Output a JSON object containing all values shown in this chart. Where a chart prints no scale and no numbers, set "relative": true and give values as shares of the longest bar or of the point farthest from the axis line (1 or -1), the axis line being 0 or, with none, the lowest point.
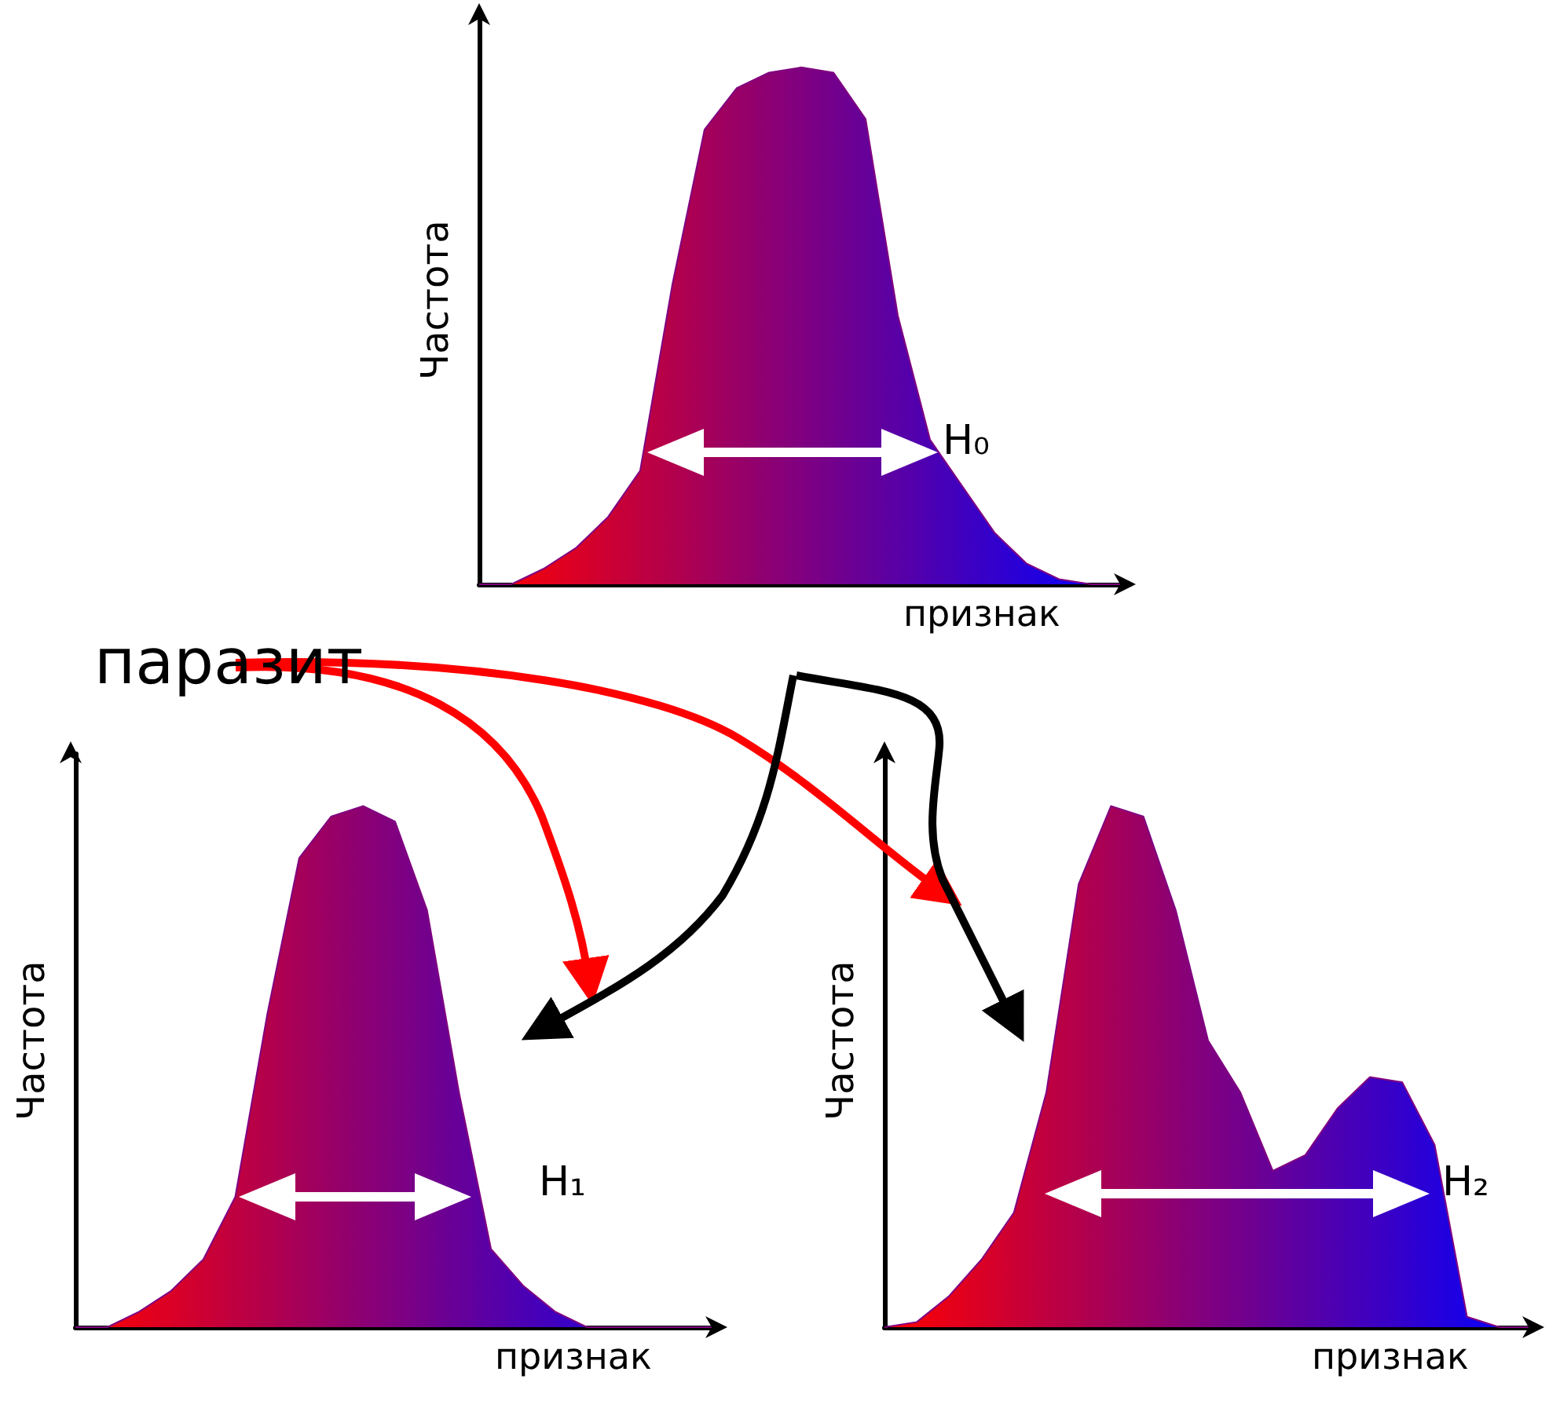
{
  "chart_data": [
    {
      "type": "area",
      "relative": true,
      "xlabel": "признак",
      "ylabel": "Частота",
      "annotations": [
        "H₀"
      ],
      "categories": [
        null,
        null,
        null,
        null,
        null,
        null,
        null,
        null,
        null,
        null,
        null,
        null,
        null,
        null,
        null,
        null,
        null,
        null,
        null,
        null,
        null
      ],
      "series": [
        {
          "color": "#800080",
          "colors": [
            "#ff0000",
            "#f3000c",
            "#e60019",
            "#da0026",
            "#cc0033",
            "#bf0040",
            "#b3004c",
            "#a60059",
            "#990066",
            "#8c0073",
            "#800080",
            "#73008c",
            "#660099",
            "#5900a6",
            "#4c00b3",
            "#4000bf",
            "#3300cc",
            "#2600da",
            "#1900e6",
            "#0c00f3",
            "#0000ff"
          ],
          "values": [
            0,
            0,
            0.03,
            0.07,
            0.13,
            0.22,
            0.58,
            0.88,
            0.96,
            0.99,
            1,
            0.99,
            0.9,
            0.52,
            0.28,
            0.19,
            0.1,
            0.04,
            0.01,
            0,
            0
          ]
        }
      ]
    },
    {
      "type": "area",
      "relative": true,
      "xlabel": "признак",
      "ylabel": "Частота",
      "annotations": [
        "H₁",
        "паразит"
      ],
      "categories": [
        null,
        null,
        null,
        null,
        null,
        null,
        null,
        null,
        null,
        null,
        null,
        null,
        null,
        null,
        null,
        null,
        null,
        null,
        null,
        null,
        null
      ],
      "series": [
        {
          "color": "#800080",
          "colors": [
            "#ff0000",
            "#f3000c",
            "#e60019",
            "#da0026",
            "#cc0033",
            "#bf0040",
            "#b3004c",
            "#a60059",
            "#990066",
            "#8c0073",
            "#800080",
            "#73008c",
            "#660099",
            "#5900a6",
            "#4c00b3",
            "#4000bf",
            "#3300cc",
            "#2600da",
            "#1900e6",
            "#0c00f3",
            "#0000ff"
          ],
          "values": [
            0,
            0,
            0.03,
            0.07,
            0.13,
            0.25,
            0.6,
            0.9,
            0.98,
            1,
            0.97,
            0.8,
            0.45,
            0.15,
            0.08,
            0.03,
            0,
            0,
            0,
            0,
            0
          ]
        }
      ]
    },
    {
      "type": "area",
      "relative": true,
      "xlabel": "признак",
      "ylabel": "Частота",
      "annotations": [
        "H₂"
      ],
      "categories": [
        null,
        null,
        null,
        null,
        null,
        null,
        null,
        null,
        null,
        null,
        null,
        null,
        null,
        null,
        null,
        null,
        null,
        null,
        null,
        null,
        null
      ],
      "series": [
        {
          "color": "#800080",
          "colors": [
            "#ff0000",
            "#f3000c",
            "#e60019",
            "#da0026",
            "#cc0033",
            "#bf0040",
            "#b3004c",
            "#a60059",
            "#990066",
            "#8c0073",
            "#800080",
            "#73008c",
            "#660099",
            "#5900a6",
            "#4c00b3",
            "#4000bf",
            "#3300cc",
            "#2600da",
            "#1900e6",
            "#0c00f3",
            "#0000ff"
          ],
          "values": [
            0,
            0.01,
            0.06,
            0.13,
            0.22,
            0.45,
            0.85,
            1,
            0.98,
            0.8,
            0.55,
            0.45,
            0.3,
            0.33,
            0.42,
            0.48,
            0.47,
            0.35,
            0.02,
            0,
            0
          ]
        }
      ]
    }
  ]
}
